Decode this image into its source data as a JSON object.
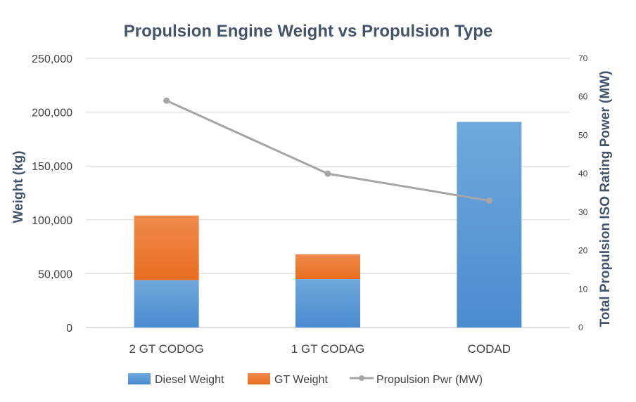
{
  "chart_data": {
    "type": "bar",
    "title": "Propulsion Engine Weight vs Propulsion Type",
    "ylabel": "Weight (kg)",
    "y2label": "Total Propulsion ISO Rating Power (MW)",
    "xlabel": "",
    "categories": [
      "2 GT CODOG",
      "1 GT CODAG",
      "CODAD"
    ],
    "ylim": [
      0,
      250000
    ],
    "y2lim": [
      0,
      70
    ],
    "yticks": [
      "0",
      "50,000",
      "100,000",
      "150,000",
      "200,000",
      "250,000"
    ],
    "ytick_values": [
      0,
      50000,
      100000,
      150000,
      200000,
      250000
    ],
    "y2ticks": [
      "0",
      "10",
      "20",
      "30",
      "40",
      "50",
      "60",
      "70"
    ],
    "y2tick_values": [
      0,
      10,
      20,
      30,
      40,
      50,
      60,
      70
    ],
    "grid": true,
    "legend_position": "bottom",
    "series": [
      {
        "name": "Diesel Weight",
        "kind": "bar",
        "stacked": true,
        "color": "#5b9bd5",
        "values": [
          44000,
          45000,
          191000
        ]
      },
      {
        "name": "GT Weight",
        "kind": "bar",
        "stacked": true,
        "color": "#ed7d31",
        "values": [
          60000,
          23000,
          0
        ]
      },
      {
        "name": "Propulsion Pwr (MW)",
        "kind": "line",
        "axis": "right",
        "color": "#a5a5a5",
        "values": [
          59,
          40,
          33
        ]
      }
    ]
  }
}
